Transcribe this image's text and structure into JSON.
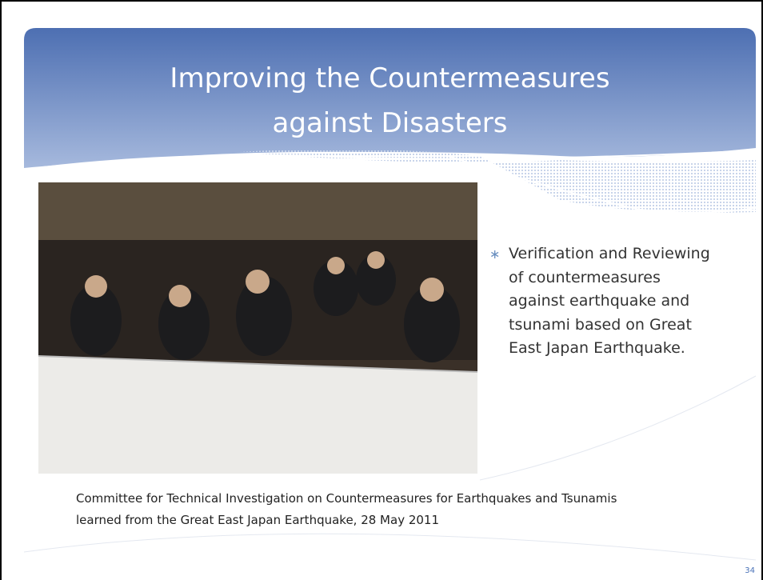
{
  "slide": {
    "title_lines": [
      "Improving the Countermeasures",
      "against Disasters"
    ],
    "bullet_lines": [
      "Verification and Reviewing",
      "of countermeasures",
      "against earthquake and",
      "tsunami based on Great",
      "East Japan Earthquake."
    ],
    "caption_lines": [
      "Committee for Technical Investigation on Countermeasures for Earthquakes and Tsunamis",
      "learned from the Great East Japan Earthquake, 28  May 2011"
    ],
    "slide_number": "34"
  }
}
